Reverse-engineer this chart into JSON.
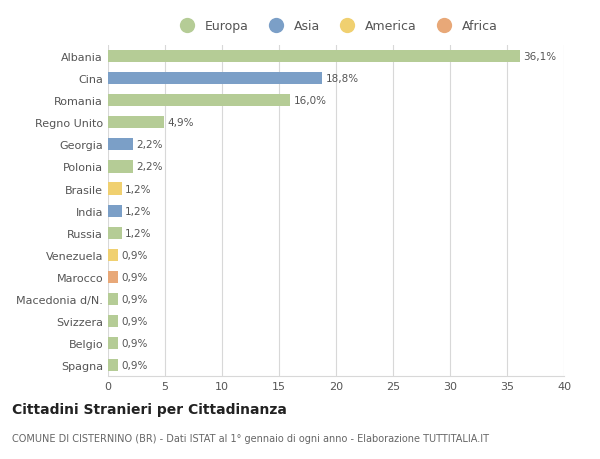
{
  "categories": [
    "Albania",
    "Cina",
    "Romania",
    "Regno Unito",
    "Georgia",
    "Polonia",
    "Brasile",
    "India",
    "Russia",
    "Venezuela",
    "Marocco",
    "Macedonia d/N.",
    "Svizzera",
    "Belgio",
    "Spagna"
  ],
  "values": [
    36.1,
    18.8,
    16.0,
    4.9,
    2.2,
    2.2,
    1.2,
    1.2,
    1.2,
    0.9,
    0.9,
    0.9,
    0.9,
    0.9,
    0.9
  ],
  "labels": [
    "36,1%",
    "18,8%",
    "16,0%",
    "4,9%",
    "2,2%",
    "2,2%",
    "1,2%",
    "1,2%",
    "1,2%",
    "0,9%",
    "0,9%",
    "0,9%",
    "0,9%",
    "0,9%",
    "0,9%"
  ],
  "continents": [
    "Europa",
    "Asia",
    "Europa",
    "Europa",
    "Asia",
    "Europa",
    "America",
    "Asia",
    "Europa",
    "America",
    "Africa",
    "Europa",
    "Europa",
    "Europa",
    "Europa"
  ],
  "colors": {
    "Europa": "#b5cc96",
    "Asia": "#7b9fc7",
    "America": "#f0d070",
    "Africa": "#e8a878"
  },
  "legend_items": [
    "Europa",
    "Asia",
    "America",
    "Africa"
  ],
  "xlim": [
    0,
    40
  ],
  "xticks": [
    0,
    5,
    10,
    15,
    20,
    25,
    30,
    35,
    40
  ],
  "title": "Cittadini Stranieri per Cittadinanza",
  "subtitle": "COMUNE DI CISTERNINO (BR) - Dati ISTAT al 1° gennaio di ogni anno - Elaborazione TUTTITALIA.IT",
  "bg_color": "#ffffff",
  "grid_color": "#d8d8d8",
  "bar_height": 0.55
}
